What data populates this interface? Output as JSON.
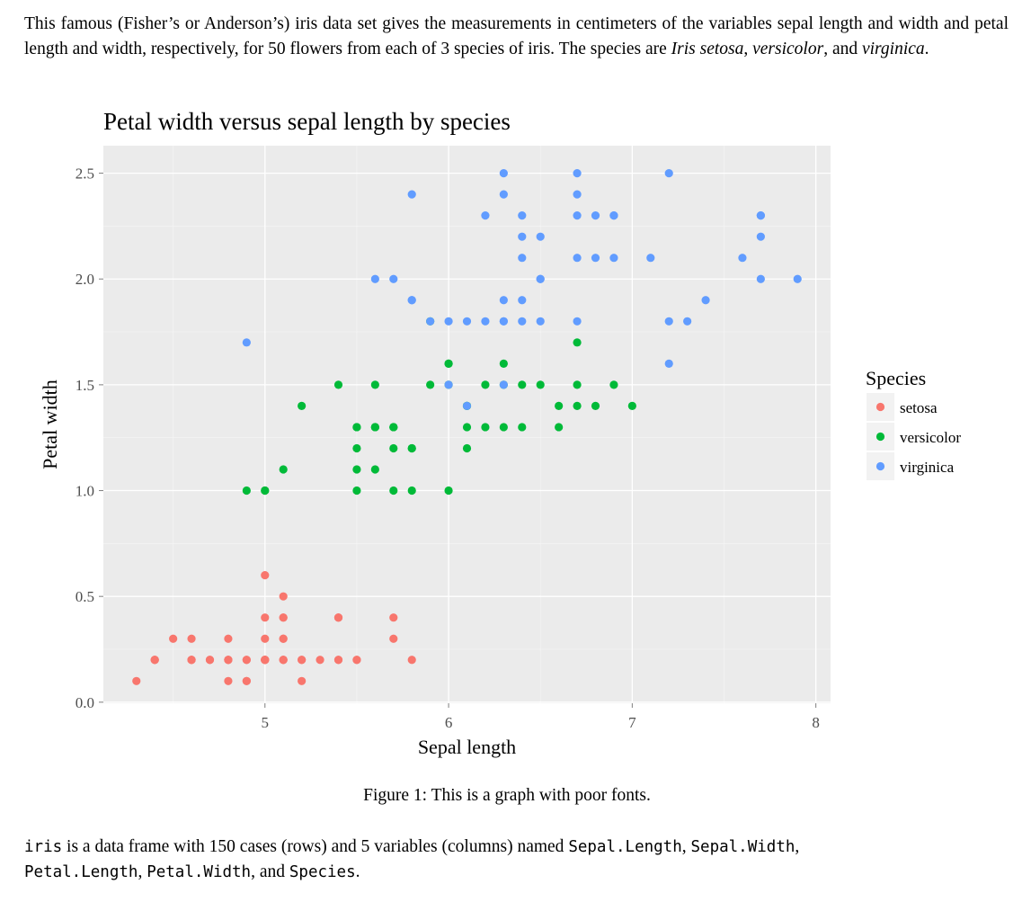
{
  "intro": {
    "p1": "This famous (Fisher’s or Anderson’s) iris data set gives the measurements in centimeters of the variables sepal length and width and petal length and width, respectively, for 50 flowers from each of 3 species of iris. The species are ",
    "s1": "Iris setosa",
    "c1": ", ",
    "s2": "versicolor",
    "c2": ", and ",
    "s3": "virginica",
    "end": "."
  },
  "caption": "Figure 1:  This is a graph with poor fonts.",
  "footer": {
    "t1": "iris",
    "t2": " is a data frame with 150 cases (rows) and 5 variables (columns) named ",
    "t3": "Sepal.Length",
    "t4": ", ",
    "t5": "Sepal.Width",
    "t6": ", ",
    "t7": "Petal.Length",
    "t8": ", ",
    "t9": "Petal.Width",
    "t10": ", and ",
    "t11": "Species",
    "t12": "."
  },
  "chart_data": {
    "type": "scatter",
    "title": "Petal width versus sepal length by species",
    "xlabel": "Sepal length",
    "ylabel": "Petal width",
    "xlim": [
      4.12,
      8.08
    ],
    "ylim": [
      -0.005,
      2.63
    ],
    "xticks": [
      5,
      6,
      7,
      8
    ],
    "yticks": [
      0.0,
      0.5,
      1.0,
      1.5,
      2.0,
      2.5
    ],
    "ytick_labels": [
      "0.0",
      "0.5",
      "1.0",
      "1.5",
      "2.0",
      "2.5"
    ],
    "background": "#EBEBEB",
    "legend": {
      "title": "Species",
      "position": "right"
    },
    "series": [
      {
        "name": "setosa",
        "color": "#F8766D",
        "x": [
          5.1,
          4.9,
          4.7,
          4.6,
          5.0,
          5.4,
          4.6,
          5.0,
          4.4,
          4.9,
          5.4,
          4.8,
          4.8,
          4.3,
          5.8,
          5.7,
          5.4,
          5.1,
          5.7,
          5.1,
          5.4,
          5.1,
          4.6,
          5.1,
          4.8,
          5.0,
          5.0,
          5.2,
          5.2,
          4.7,
          4.8,
          5.4,
          5.2,
          5.5,
          4.9,
          5.0,
          5.5,
          4.9,
          4.4,
          5.1,
          5.0,
          4.5,
          4.4,
          5.0,
          5.1,
          4.8,
          5.1,
          4.6,
          5.3,
          5.0
        ],
        "y": [
          0.2,
          0.2,
          0.2,
          0.2,
          0.2,
          0.4,
          0.3,
          0.2,
          0.2,
          0.1,
          0.2,
          0.2,
          0.1,
          0.1,
          0.2,
          0.4,
          0.4,
          0.3,
          0.3,
          0.3,
          0.2,
          0.4,
          0.2,
          0.5,
          0.2,
          0.2,
          0.4,
          0.2,
          0.2,
          0.2,
          0.2,
          0.4,
          0.1,
          0.2,
          0.2,
          0.2,
          0.2,
          0.1,
          0.2,
          0.2,
          0.3,
          0.3,
          0.2,
          0.6,
          0.4,
          0.3,
          0.2,
          0.2,
          0.2,
          0.2
        ]
      },
      {
        "name": "versicolor",
        "color": "#00BA38",
        "x": [
          7.0,
          6.4,
          6.9,
          5.5,
          6.5,
          5.7,
          6.3,
          4.9,
          6.6,
          5.2,
          5.0,
          5.9,
          6.0,
          6.1,
          5.6,
          6.7,
          5.6,
          5.8,
          6.2,
          5.6,
          5.9,
          6.1,
          6.3,
          6.1,
          6.4,
          6.6,
          6.8,
          6.7,
          6.0,
          5.7,
          5.5,
          5.5,
          5.8,
          6.0,
          5.4,
          6.0,
          6.7,
          6.3,
          5.6,
          5.5,
          5.5,
          6.1,
          5.8,
          5.0,
          5.6,
          5.7,
          5.7,
          6.2,
          5.1,
          5.7
        ],
        "y": [
          1.4,
          1.5,
          1.5,
          1.3,
          1.5,
          1.3,
          1.6,
          1.0,
          1.3,
          1.4,
          1.0,
          1.5,
          1.0,
          1.4,
          1.3,
          1.4,
          1.5,
          1.0,
          1.5,
          1.1,
          1.8,
          1.3,
          1.5,
          1.2,
          1.3,
          1.4,
          1.4,
          1.7,
          1.5,
          1.0,
          1.1,
          1.0,
          1.2,
          1.6,
          1.5,
          1.6,
          1.5,
          1.3,
          1.3,
          1.3,
          1.2,
          1.4,
          1.2,
          1.0,
          1.3,
          1.2,
          1.3,
          1.3,
          1.1,
          1.3
        ]
      },
      {
        "name": "virginica",
        "color": "#619CFF",
        "x": [
          6.3,
          5.8,
          7.1,
          6.3,
          6.5,
          7.6,
          4.9,
          7.3,
          6.7,
          7.2,
          6.5,
          6.4,
          6.8,
          5.7,
          5.8,
          6.4,
          6.5,
          7.7,
          7.7,
          6.0,
          6.9,
          5.6,
          7.7,
          6.3,
          6.7,
          7.2,
          6.2,
          6.1,
          6.4,
          7.2,
          7.4,
          7.9,
          6.4,
          6.3,
          6.1,
          7.7,
          6.3,
          6.4,
          6.0,
          6.9,
          6.7,
          6.9,
          5.8,
          6.8,
          6.7,
          6.7,
          6.3,
          6.5,
          6.2,
          5.9
        ],
        "y": [
          2.5,
          1.9,
          2.1,
          1.8,
          2.2,
          2.1,
          1.7,
          1.8,
          1.8,
          2.5,
          2.0,
          1.9,
          2.1,
          2.0,
          2.4,
          2.3,
          1.8,
          2.2,
          2.3,
          1.5,
          2.3,
          2.0,
          2.0,
          1.8,
          2.1,
          1.8,
          1.8,
          1.8,
          2.1,
          1.6,
          1.9,
          2.0,
          2.2,
          1.5,
          1.4,
          2.3,
          2.4,
          1.8,
          1.8,
          2.1,
          2.4,
          2.3,
          1.9,
          2.3,
          2.5,
          2.3,
          1.9,
          2.0,
          2.3,
          1.8
        ]
      }
    ]
  }
}
